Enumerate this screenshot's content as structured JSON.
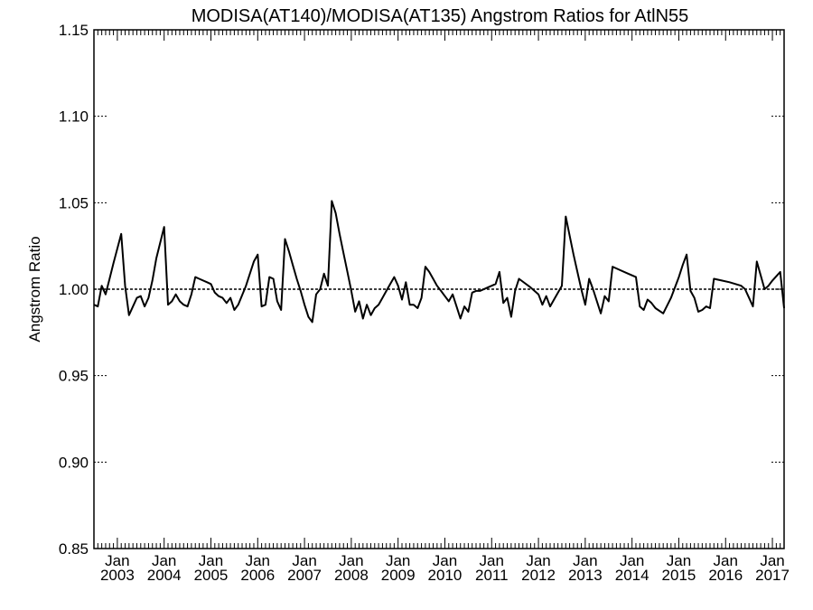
{
  "chart_data": {
    "type": "line",
    "title": "MODISA(AT140)/MODISA(AT135)  Angstrom Ratios for AtlN55",
    "xlabel": "",
    "ylabel": "Angstrom Ratio",
    "ylim": [
      0.85,
      1.15
    ],
    "yticks": [
      0.85,
      0.9,
      0.95,
      1.0,
      1.05,
      1.1,
      1.15
    ],
    "ytick_labels": [
      "0.85",
      "0.90",
      "0.95",
      "1.00",
      "1.05",
      "1.10",
      "1.15"
    ],
    "xlim": [
      "2002-07-01",
      "2017-04-01"
    ],
    "xtick_labels": [
      {
        "month": "Jan",
        "year": "2003"
      },
      {
        "month": "Jan",
        "year": "2004"
      },
      {
        "month": "Jan",
        "year": "2005"
      },
      {
        "month": "Jan",
        "year": "2006"
      },
      {
        "month": "Jan",
        "year": "2007"
      },
      {
        "month": "Jan",
        "year": "2008"
      },
      {
        "month": "Jan",
        "year": "2009"
      },
      {
        "month": "Jan",
        "year": "2010"
      },
      {
        "month": "Jan",
        "year": "2011"
      },
      {
        "month": "Jan",
        "year": "2012"
      },
      {
        "month": "Jan",
        "year": "2013"
      },
      {
        "month": "Jan",
        "year": "2014"
      },
      {
        "month": "Jan",
        "year": "2015"
      },
      {
        "month": "Jan",
        "year": "2016"
      },
      {
        "month": "Jan",
        "year": "2017"
      }
    ],
    "reference_line": 1.0,
    "grid": false,
    "series": [
      {
        "points": [
          [
            "2002-07-01",
            0.991
          ],
          [
            "2002-08-01",
            0.99
          ],
          [
            "2002-09-01",
            1.002
          ],
          [
            "2002-10-01",
            0.997
          ],
          [
            "2002-11-01",
            1.006
          ],
          [
            "2002-12-01",
            1.015
          ],
          [
            "2003-02-01",
            1.032
          ],
          [
            "2003-03-01",
            1.002
          ],
          [
            "2003-04-01",
            0.985
          ],
          [
            "2003-05-01",
            0.99
          ],
          [
            "2003-06-01",
            0.995
          ],
          [
            "2003-07-01",
            0.996
          ],
          [
            "2003-08-01",
            0.99
          ],
          [
            "2003-09-01",
            0.995
          ],
          [
            "2003-10-01",
            1.005
          ],
          [
            "2003-11-01",
            1.018
          ],
          [
            "2004-01-01",
            1.036
          ],
          [
            "2004-02-01",
            0.991
          ],
          [
            "2004-03-01",
            0.993
          ],
          [
            "2004-04-01",
            0.997
          ],
          [
            "2004-05-01",
            0.993
          ],
          [
            "2004-06-01",
            0.991
          ],
          [
            "2004-07-01",
            0.99
          ],
          [
            "2004-08-01",
            0.997
          ],
          [
            "2004-09-01",
            1.007
          ],
          [
            "2004-10-01",
            1.006
          ],
          [
            "2004-12-01",
            1.004
          ],
          [
            "2005-01-01",
            1.003
          ],
          [
            "2005-02-01",
            0.998
          ],
          [
            "2005-03-01",
            0.996
          ],
          [
            "2005-04-01",
            0.995
          ],
          [
            "2005-05-01",
            0.992
          ],
          [
            "2005-06-01",
            0.995
          ],
          [
            "2005-07-01",
            0.988
          ],
          [
            "2005-08-01",
            0.991
          ],
          [
            "2005-10-01",
            1.002
          ],
          [
            "2005-12-01",
            1.016
          ],
          [
            "2006-01-01",
            1.02
          ],
          [
            "2006-02-01",
            0.99
          ],
          [
            "2006-03-01",
            0.991
          ],
          [
            "2006-04-01",
            1.007
          ],
          [
            "2006-05-01",
            1.006
          ],
          [
            "2006-06-01",
            0.993
          ],
          [
            "2006-07-01",
            0.988
          ],
          [
            "2006-08-01",
            1.029
          ],
          [
            "2006-09-01",
            1.022
          ],
          [
            "2006-10-01",
            1.014
          ],
          [
            "2006-11-01",
            1.006
          ],
          [
            "2006-12-01",
            0.999
          ],
          [
            "2007-01-01",
            0.991
          ],
          [
            "2007-02-01",
            0.984
          ],
          [
            "2007-03-01",
            0.981
          ],
          [
            "2007-04-01",
            0.997
          ],
          [
            "2007-05-01",
            1.0
          ],
          [
            "2007-06-01",
            1.009
          ],
          [
            "2007-07-01",
            1.002
          ],
          [
            "2007-08-01",
            1.051
          ],
          [
            "2007-09-01",
            1.044
          ],
          [
            "2007-10-01",
            1.032
          ],
          [
            "2007-11-01",
            1.021
          ],
          [
            "2007-12-01",
            1.01
          ],
          [
            "2008-01-01",
            0.999
          ],
          [
            "2008-02-01",
            0.987
          ],
          [
            "2008-03-01",
            0.993
          ],
          [
            "2008-04-01",
            0.983
          ],
          [
            "2008-05-01",
            0.991
          ],
          [
            "2008-06-01",
            0.985
          ],
          [
            "2008-07-01",
            0.989
          ],
          [
            "2008-08-01",
            0.991
          ],
          [
            "2008-09-01",
            0.995
          ],
          [
            "2008-10-01",
            0.999
          ],
          [
            "2008-11-01",
            1.003
          ],
          [
            "2008-12-01",
            1.007
          ],
          [
            "2009-01-01",
            1.002
          ],
          [
            "2009-02-01",
            0.994
          ],
          [
            "2009-03-01",
            1.004
          ],
          [
            "2009-04-01",
            0.991
          ],
          [
            "2009-05-01",
            0.991
          ],
          [
            "2009-06-01",
            0.989
          ],
          [
            "2009-07-01",
            0.995
          ],
          [
            "2009-08-01",
            1.013
          ],
          [
            "2009-09-01",
            1.01
          ],
          [
            "2009-10-01",
            1.006
          ],
          [
            "2009-11-01",
            1.002
          ],
          [
            "2009-12-01",
            0.999
          ],
          [
            "2010-01-01",
            0.996
          ],
          [
            "2010-02-01",
            0.993
          ],
          [
            "2010-03-01",
            0.997
          ],
          [
            "2010-04-01",
            0.99
          ],
          [
            "2010-05-01",
            0.983
          ],
          [
            "2010-06-01",
            0.99
          ],
          [
            "2010-07-01",
            0.987
          ],
          [
            "2010-08-01",
            0.998
          ],
          [
            "2010-09-01",
            0.999
          ],
          [
            "2010-10-01",
            0.999
          ],
          [
            "2010-12-01",
            1.001
          ],
          [
            "2011-02-01",
            1.003
          ],
          [
            "2011-03-01",
            1.01
          ],
          [
            "2011-04-01",
            0.992
          ],
          [
            "2011-05-01",
            0.995
          ],
          [
            "2011-06-01",
            0.984
          ],
          [
            "2011-07-01",
            0.999
          ],
          [
            "2011-08-01",
            1.006
          ],
          [
            "2011-11-01",
            1.001
          ],
          [
            "2012-01-01",
            0.997
          ],
          [
            "2012-02-01",
            0.991
          ],
          [
            "2012-03-01",
            0.996
          ],
          [
            "2012-04-01",
            0.99
          ],
          [
            "2012-05-01",
            0.994
          ],
          [
            "2012-07-01",
            1.002
          ],
          [
            "2012-08-01",
            1.042
          ],
          [
            "2012-09-01",
            1.031
          ],
          [
            "2012-10-01",
            1.02
          ],
          [
            "2012-11-01",
            1.01
          ],
          [
            "2012-12-01",
            1.0
          ],
          [
            "2013-01-01",
            0.991
          ],
          [
            "2013-02-01",
            1.006
          ],
          [
            "2013-03-01",
            1.0
          ],
          [
            "2013-04-01",
            0.993
          ],
          [
            "2013-05-01",
            0.986
          ],
          [
            "2013-06-01",
            0.996
          ],
          [
            "2013-07-01",
            0.993
          ],
          [
            "2013-08-01",
            1.013
          ],
          [
            "2013-10-01",
            1.011
          ],
          [
            "2013-12-01",
            1.009
          ],
          [
            "2014-02-01",
            1.007
          ],
          [
            "2014-03-01",
            0.99
          ],
          [
            "2014-04-01",
            0.988
          ],
          [
            "2014-05-01",
            0.994
          ],
          [
            "2014-06-01",
            0.992
          ],
          [
            "2014-07-01",
            0.989
          ],
          [
            "2014-09-01",
            0.986
          ],
          [
            "2014-11-01",
            0.995
          ],
          [
            "2015-01-01",
            1.007
          ],
          [
            "2015-02-01",
            1.014
          ],
          [
            "2015-03-01",
            1.02
          ],
          [
            "2015-04-01",
            0.999
          ],
          [
            "2015-05-01",
            0.995
          ],
          [
            "2015-06-01",
            0.987
          ],
          [
            "2015-07-01",
            0.988
          ],
          [
            "2015-08-01",
            0.99
          ],
          [
            "2015-09-01",
            0.989
          ],
          [
            "2015-10-01",
            1.006
          ],
          [
            "2015-12-01",
            1.005
          ],
          [
            "2016-02-01",
            1.004
          ],
          [
            "2016-05-01",
            1.002
          ],
          [
            "2016-06-01",
            1.0
          ],
          [
            "2016-07-01",
            0.995
          ],
          [
            "2016-08-01",
            0.99
          ],
          [
            "2016-09-01",
            1.016
          ],
          [
            "2016-10-01",
            1.008
          ],
          [
            "2016-11-01",
            1.0
          ],
          [
            "2016-12-01",
            1.002
          ],
          [
            "2017-01-01",
            1.005
          ],
          [
            "2017-03-01",
            1.01
          ],
          [
            "2017-04-01",
            0.989
          ]
        ]
      }
    ]
  }
}
